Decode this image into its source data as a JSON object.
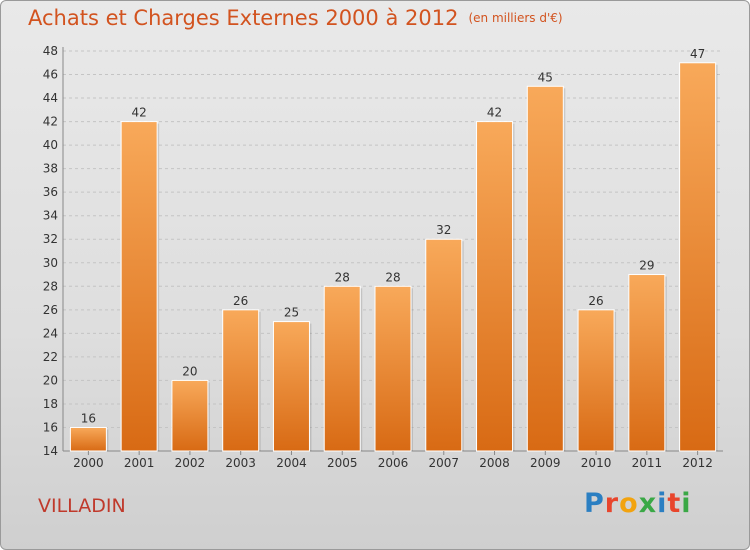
{
  "title": "Achats et Charges Externes 2000 à 2012",
  "subtitle": "(en milliers d'€)",
  "place": "VILLADIN",
  "logo": {
    "letters": [
      "P",
      "r",
      "o",
      "x",
      "i",
      "t",
      "i"
    ],
    "colors": [
      "#2b7fc2",
      "#e8452c",
      "#f2a30f",
      "#3aa846",
      "#2b7fc2",
      "#e8452c",
      "#3aa846"
    ]
  },
  "colors": {
    "bar_light": "#f8a95a",
    "bar_dark": "#d86a14",
    "title": "#d2531f",
    "place": "#c0392b"
  },
  "chart_data": {
    "type": "bar",
    "title": "Achats et Charges Externes 2000 à 2012",
    "subtitle": "(en milliers d'€)",
    "xlabel": "",
    "ylabel": "",
    "categories": [
      "2000",
      "2001",
      "2002",
      "2003",
      "2004",
      "2005",
      "2006",
      "2007",
      "2008",
      "2009",
      "2010",
      "2011",
      "2012"
    ],
    "values": [
      16,
      42,
      20,
      26,
      25,
      28,
      28,
      32,
      42,
      45,
      26,
      29,
      47
    ],
    "ylim": [
      14,
      48
    ],
    "yticks": [
      14,
      16,
      18,
      20,
      22,
      24,
      26,
      28,
      30,
      32,
      34,
      36,
      38,
      40,
      42,
      44,
      46,
      48
    ],
    "grid": true,
    "data_labels": true
  }
}
